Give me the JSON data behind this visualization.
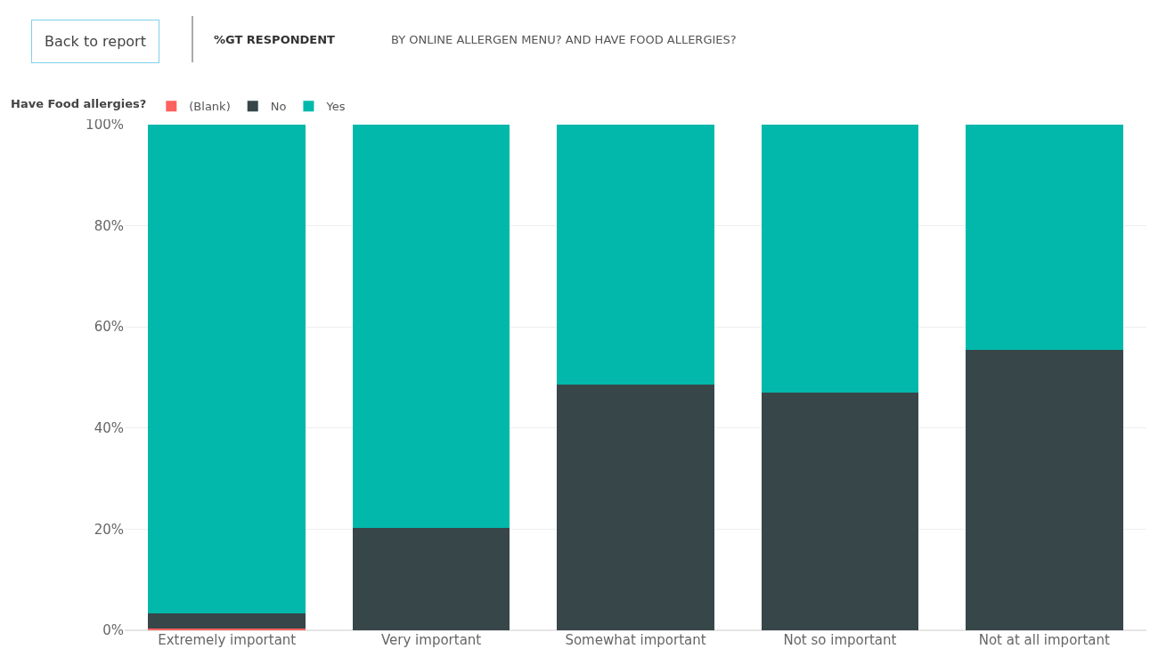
{
  "chart_data": {
    "type": "bar",
    "stacked": true,
    "title": "%GT RESPONDENT",
    "subtitle": "BY ONLINE ALLERGEN MENU? AND HAVE FOOD ALLERGIES?",
    "annotations": [
      "Back to report"
    ],
    "legend_title": "Have Food allergies?",
    "legend": "top left",
    "categories": [
      "Extremely important",
      "Very important",
      "Somewhat important",
      "Not so important",
      "Not at all important"
    ],
    "series": [
      {
        "name": "(Blank)",
        "color": "#fd625e",
        "values": [
          0.3,
          0,
          0,
          0,
          0
        ]
      },
      {
        "name": "No",
        "color": "#374649",
        "values": [
          3.0,
          20.2,
          48.6,
          47.0,
          55.5
        ]
      },
      {
        "name": "Yes",
        "color": "#01b8aa",
        "values": [
          96.7,
          79.8,
          51.4,
          53.0,
          44.5
        ]
      }
    ],
    "ylim": [
      0,
      100
    ],
    "yticks": [
      {
        "value": 0,
        "label": "0%"
      },
      {
        "value": 20,
        "label": "20%"
      },
      {
        "value": 40,
        "label": "40%"
      },
      {
        "value": 60,
        "label": "60%"
      },
      {
        "value": 80,
        "label": "80%"
      },
      {
        "value": 100,
        "label": "100%"
      }
    ],
    "grid": "y"
  }
}
